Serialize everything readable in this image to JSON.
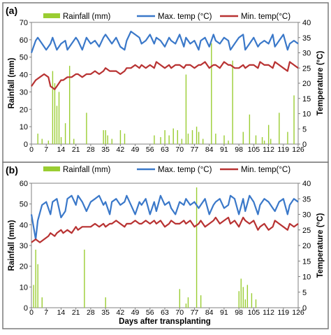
{
  "colors": {
    "rainfall": "#9acd32",
    "max": "#3a78c9",
    "min": "#b83232",
    "frame": "#7a7a7a",
    "plot_border": "#808080"
  },
  "chart_data": [
    {
      "type": "bar+line",
      "panel_label": "(a)",
      "xlabel": "",
      "ylabel_left": "Rainfall (mm)",
      "ylabel_right": "Temperature (°C)",
      "ylim_left": [
        0,
        70
      ],
      "yticks_left": [
        "0",
        "10",
        "20",
        "30",
        "40",
        "50",
        "60",
        "70"
      ],
      "ylim_right": [
        0,
        40
      ],
      "yticks_right": [
        "0",
        "5",
        "10",
        "15",
        "20",
        "25",
        "30",
        "35",
        "40"
      ],
      "xlim": [
        0,
        126
      ],
      "xticks": [
        "0",
        "7",
        "14",
        "21",
        "28",
        "35",
        "42",
        "49",
        "56",
        "63",
        "70",
        "77",
        "84",
        "91",
        "98",
        "105",
        "112",
        "119",
        "126"
      ],
      "legend": [
        "Rainfall (mm)",
        "Max. temp (°C)",
        "Min. temp(°C)"
      ],
      "rainfall": {
        "name": "Rainfall (mm)",
        "x": [
          3,
          5,
          8,
          10,
          11,
          12,
          13,
          14,
          16,
          18,
          20,
          26,
          34,
          35,
          36,
          38,
          42,
          44,
          58,
          61,
          63,
          65,
          67,
          69,
          71,
          73,
          74,
          76,
          78,
          79,
          81,
          85,
          87,
          91,
          93,
          95,
          100,
          103,
          106,
          109,
          110,
          112,
          113,
          117,
          121,
          124
        ],
        "values": [
          6,
          3,
          2,
          42,
          35,
          22,
          30,
          4,
          12,
          45,
          3,
          18,
          8,
          8,
          5,
          3,
          8,
          6,
          5,
          4,
          8,
          5,
          9,
          8,
          3,
          40,
          6,
          8,
          10,
          7,
          3,
          58,
          6,
          5,
          2,
          48,
          7,
          17,
          5,
          4,
          2,
          11,
          3,
          18,
          7,
          28
        ]
      },
      "max_temp": {
        "name": "Max. temp (°C)",
        "x": [
          0,
          2,
          3,
          5,
          7,
          9,
          10,
          12,
          14,
          16,
          17,
          19,
          21,
          22,
          24,
          26,
          28,
          30,
          32,
          34,
          35,
          37,
          38,
          40,
          42,
          44,
          45,
          47,
          49,
          51,
          52,
          54,
          56,
          58,
          59,
          61,
          63,
          65,
          66,
          68,
          70,
          72,
          73,
          75,
          77,
          79,
          80,
          82,
          84,
          86,
          87,
          89,
          91,
          93,
          94,
          96,
          98,
          100,
          101,
          103,
          105,
          107,
          108,
          110,
          112,
          114,
          115,
          117,
          119,
          121,
          122,
          124,
          126
        ],
        "values": [
          30,
          34,
          35,
          33,
          31,
          33,
          35,
          31,
          33,
          34,
          31,
          33,
          35,
          34,
          31,
          35,
          33,
          34,
          32,
          35,
          36,
          34,
          33,
          35,
          32,
          31,
          34,
          37,
          36,
          35,
          33,
          34,
          36,
          33,
          35,
          34,
          32,
          35,
          34,
          33,
          36,
          32,
          35,
          33,
          34,
          31,
          34,
          35,
          32,
          36,
          34,
          33,
          35,
          34,
          31,
          33,
          35,
          36,
          31,
          33,
          35,
          32,
          33,
          34,
          33,
          36,
          32,
          34,
          36,
          31,
          33,
          34,
          33
        ]
      },
      "min_temp": {
        "name": "Min. temp(°C)",
        "x": [
          0,
          2,
          4,
          6,
          8,
          9,
          11,
          12,
          14,
          15,
          17,
          19,
          21,
          22,
          24,
          26,
          28,
          30,
          32,
          34,
          35,
          37,
          38,
          40,
          42,
          44,
          45,
          47,
          49,
          51,
          52,
          54,
          56,
          58,
          59,
          61,
          63,
          65,
          66,
          68,
          70,
          72,
          73,
          75,
          77,
          79,
          80,
          82,
          84,
          86,
          87,
          89,
          91,
          93,
          94,
          96,
          98,
          100,
          101,
          103,
          105,
          107,
          108,
          110,
          112,
          114,
          115,
          117,
          119,
          121,
          122,
          124,
          126
        ],
        "values": [
          19,
          21,
          22,
          23,
          22,
          19,
          18,
          19,
          21,
          21,
          22,
          22,
          23,
          23,
          22,
          23,
          23,
          24,
          23,
          24,
          25,
          24,
          24,
          24,
          23,
          24,
          25,
          25,
          26,
          25,
          26,
          25,
          26,
          25,
          27,
          26,
          25,
          26,
          25,
          26,
          26,
          25,
          26,
          26,
          25,
          26,
          26,
          27,
          25,
          26,
          26,
          25,
          27,
          26,
          26,
          25,
          25,
          26,
          25,
          26,
          26,
          25,
          27,
          26,
          26,
          25,
          27,
          26,
          25,
          24,
          27,
          26,
          25
        ]
      }
    },
    {
      "type": "bar+line",
      "panel_label": "(b)",
      "xlabel": "Days after transplanting",
      "ylabel_left": "Rainfall (mm)",
      "ylabel_right": "Temperature (°C)",
      "ylim_left": [
        0,
        60
      ],
      "yticks_left": [
        "0",
        "10",
        "20",
        "30",
        "40",
        "50",
        "60"
      ],
      "ylim_right": [
        0,
        40
      ],
      "yticks_right": [
        "0",
        "5",
        "10",
        "15",
        "20",
        "25",
        "30",
        "35",
        "40"
      ],
      "xlim": [
        0,
        126
      ],
      "xticks": [
        "0",
        "7",
        "14",
        "21",
        "28",
        "35",
        "42",
        "49",
        "56",
        "63",
        "70",
        "77",
        "84",
        "91",
        "98",
        "105",
        "112",
        "119",
        "126"
      ],
      "legend": [
        "Rainfall (mm)",
        "Max. temp (°C)",
        "Min. temp(°C)"
      ],
      "rainfall": {
        "name": "Rainfall (mm)",
        "x": [
          1,
          2,
          3,
          5,
          25,
          35,
          70,
          73,
          74,
          78,
          80,
          98,
          99,
          100,
          101,
          102,
          104,
          106
        ],
        "values": [
          11,
          28,
          21,
          5,
          28,
          5,
          9,
          2,
          5,
          58,
          6,
          8,
          14,
          10,
          4,
          11,
          7,
          4
        ]
      },
      "max_temp": {
        "name": "Max. temp (°C)",
        "x": [
          0,
          2,
          3,
          5,
          7,
          9,
          10,
          12,
          14,
          16,
          17,
          19,
          21,
          22,
          24,
          26,
          28,
          30,
          32,
          34,
          35,
          37,
          38,
          40,
          42,
          44,
          45,
          47,
          49,
          51,
          52,
          54,
          56,
          58,
          59,
          61,
          63,
          65,
          66,
          68,
          70,
          72,
          73,
          75,
          77,
          79,
          80,
          82,
          84,
          86,
          87,
          89,
          91,
          93,
          94,
          96,
          98,
          100,
          101,
          103,
          105,
          107,
          108,
          110,
          112,
          114,
          115,
          117,
          119,
          121,
          122,
          124,
          126
        ],
        "values": [
          30,
          22,
          28,
          33,
          34,
          30,
          34,
          35,
          29,
          31,
          35,
          36,
          33,
          36,
          34,
          31,
          34,
          35,
          36,
          33,
          34,
          30,
          34,
          35,
          33,
          34,
          36,
          33,
          30,
          34,
          33,
          35,
          30,
          34,
          31,
          36,
          33,
          34,
          32,
          30,
          34,
          33,
          35,
          33,
          34,
          32,
          33,
          35,
          30,
          33,
          34,
          35,
          32,
          33,
          36,
          35,
          30,
          35,
          31,
          36,
          34,
          30,
          33,
          35,
          34,
          32,
          31,
          34,
          35,
          30,
          33,
          35,
          34
        ]
      },
      "min_temp": {
        "name": "Min. temp(°C)",
        "x": [
          0,
          2,
          4,
          6,
          8,
          9,
          11,
          12,
          14,
          15,
          17,
          19,
          21,
          22,
          24,
          26,
          28,
          30,
          32,
          34,
          35,
          37,
          38,
          40,
          42,
          44,
          45,
          47,
          49,
          51,
          52,
          54,
          56,
          58,
          59,
          61,
          63,
          65,
          66,
          68,
          70,
          72,
          73,
          75,
          77,
          79,
          80,
          82,
          84,
          86,
          87,
          89,
          91,
          93,
          94,
          96,
          98,
          100,
          101,
          103,
          105,
          107,
          108,
          110,
          112,
          114,
          115,
          117,
          119,
          121,
          122,
          124,
          126
        ],
        "values": [
          21,
          22,
          21,
          22,
          23,
          24,
          23,
          24,
          25,
          24,
          25,
          24,
          26,
          25,
          26,
          26,
          26,
          27,
          26,
          27,
          26,
          27,
          27,
          28,
          27,
          26,
          27,
          27,
          28,
          27,
          27,
          28,
          27,
          28,
          27,
          28,
          26,
          27,
          28,
          27,
          27,
          28,
          27,
          28,
          26,
          27,
          28,
          26,
          27,
          28,
          29,
          27,
          28,
          29,
          27,
          28,
          26,
          29,
          28,
          27,
          28,
          25,
          26,
          27,
          25,
          26,
          28,
          27,
          26,
          25,
          27,
          26,
          27
        ]
      }
    }
  ]
}
